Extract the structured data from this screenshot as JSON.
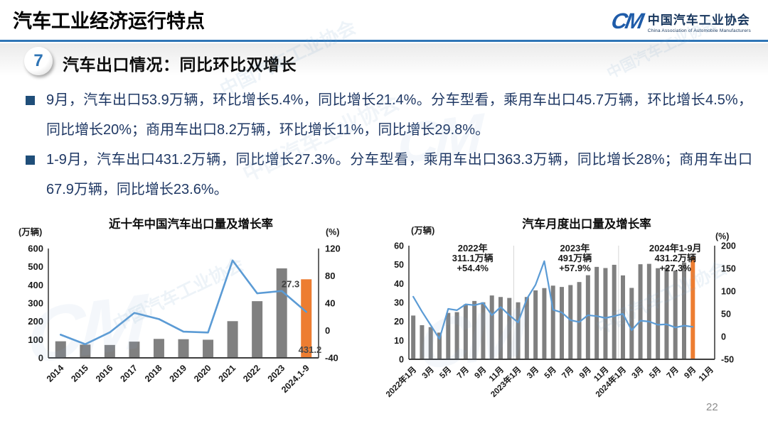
{
  "header": {
    "title": "汽车工业经济运行特点",
    "logo": {
      "mark": "CM",
      "cn": "中国汽车工业协会",
      "en": "China Association of Automobile Manufacturers"
    }
  },
  "section": {
    "number": "7",
    "title": "汽车出口情况：同比环比双增长"
  },
  "bullets": [
    "9月，汽车出口53.9万辆，环比增长5.4%，同比增长21.4%。分车型看，乘用车出口45.7万辆，环比增长4.5%，同比增长20%；商用车出口8.2万辆，环比增长11%，同比增长29.8%。",
    "1-9月，汽车出口431.2万辆，同比增长27.3%。分车型看，乘用车出口363.3万辆，同比增长28%；商用车出口67.9万辆，同比增长23.6%。"
  ],
  "watermark": {
    "cn": "中国汽车工业协会",
    "en": "China Association of Automobile Manufacturers"
  },
  "page_number": "22",
  "colors": {
    "accent_blue": "#2E75B6",
    "bullet_navy": "#1F3864",
    "bar_gray": "#808080",
    "bar_orange": "#ED7D31",
    "line_blue": "#5B9BD5"
  },
  "chart_data": [
    {
      "type": "bar+line",
      "title": "近十年中国汽车出口量及增长率",
      "unit_left": "(万辆)",
      "unit_right": "(%)",
      "slots": 11,
      "label_every": 1,
      "categories": [
        "2014",
        "2015",
        "2016",
        "2017",
        "2018",
        "2019",
        "2020",
        "2021",
        "2022",
        "2023",
        "2024.1-9"
      ],
      "bars": {
        "name": "出口量(万辆)",
        "values": [
          91,
          72.8,
          70.8,
          89.1,
          104.1,
          102.4,
          99.5,
          201.5,
          311.1,
          491,
          431.2
        ],
        "color": "#808080",
        "highlight_index": 10,
        "highlight_color": "#ED7D31"
      },
      "line": {
        "name": "增长率(%)",
        "values": [
          -6.1,
          -20,
          -2.7,
          25.8,
          16.8,
          -1.6,
          -2.9,
          102.5,
          54.4,
          57.9,
          27.3
        ],
        "color": "#5B9BD5"
      },
      "y_left": {
        "min": 0,
        "max": 600,
        "ticks": [
          0,
          100,
          200,
          300,
          400,
          500,
          600
        ]
      },
      "y_right": {
        "min": -40,
        "max": 120,
        "ticks": [
          -40,
          0,
          40,
          80,
          120
        ]
      },
      "bar_labels": [
        {
          "index": 10,
          "text": "27.3",
          "pos": "top"
        },
        {
          "index": 10,
          "text": "431.2",
          "pos": "bottom"
        }
      ],
      "grid": false,
      "legend": "none"
    },
    {
      "type": "bar+line",
      "title": "汽车月度出口量及增长率",
      "unit_left": "(万辆)",
      "unit_right": "(%)",
      "slots": 35,
      "label_every": 2,
      "categories": [
        "2022年1月",
        "2022年2月",
        "2022年3月",
        "2022年4月",
        "2022年5月",
        "2022年6月",
        "2022年7月",
        "2022年8月",
        "2022年9月",
        "2022年10月",
        "2022年11月",
        "2022年12月",
        "2023年1月",
        "2023年2月",
        "2023年3月",
        "2023年4月",
        "2023年5月",
        "2023年6月",
        "2023年7月",
        "2023年8月",
        "2023年9月",
        "2023年10月",
        "2023年11月",
        "2023年12月",
        "2024年1月",
        "2024年2月",
        "2024年3月",
        "2024年4月",
        "2024年5月",
        "2024年6月",
        "2024年7月",
        "2024年8月",
        "2024年9月"
      ],
      "x_axis_labels": [
        "2022年1月",
        "3月",
        "5月",
        "7月",
        "9月",
        "11月",
        "2023年1月",
        "3月",
        "5月",
        "7月",
        "9月",
        "11月",
        "2024年1月",
        "3月",
        "5月",
        "7月",
        "9月",
        "11月"
      ],
      "bars": {
        "name": "月度出口量(万辆)",
        "values": [
          23.1,
          18.0,
          17.0,
          14.1,
          24.5,
          24.9,
          29.0,
          30.8,
          30.1,
          33.7,
          32.9,
          32.4,
          30.1,
          32.9,
          36.4,
          37.6,
          38.9,
          38.2,
          39.2,
          40.8,
          44.4,
          48.8,
          48.2,
          49.9,
          44.3,
          37.7,
          50.2,
          50.4,
          48.1,
          48.5,
          46.9,
          51.1,
          53.9
        ],
        "color": "#808080",
        "highlight_index": 32,
        "highlight_color": "#ED7D31"
      },
      "line": {
        "name": "同比增长率(%)",
        "values": [
          87.7,
          55,
          25,
          -5,
          61,
          58,
          71,
          69,
          74,
          47,
          65,
          47,
          31,
          83,
          114,
          166,
          59,
          53,
          36,
          32,
          47,
          45,
          41,
          45,
          50,
          14,
          35,
          33,
          26,
          27,
          20,
          24,
          21.4
        ],
        "color": "#5B9BD5"
      },
      "y_left": {
        "min": 0,
        "max": 60,
        "ticks": [
          0,
          10,
          20,
          30,
          40,
          50,
          60
        ]
      },
      "y_right": {
        "min": -50,
        "max": 200,
        "ticks": [
          -50,
          0,
          50,
          100,
          150,
          200
        ]
      },
      "separators": [
        12,
        24
      ],
      "annotations": [
        {
          "slot": 7.3,
          "lines": [
            "2022年",
            "311.1万辆",
            "+54.4%"
          ]
        },
        {
          "slot": 19,
          "lines": [
            "2023年",
            "491万辆",
            "+57.9%"
          ]
        },
        {
          "slot": 30.5,
          "lines": [
            "2024年1-9月",
            "431.2万辆",
            "+27.3%"
          ]
        }
      ],
      "grid": false,
      "legend": "none"
    }
  ]
}
